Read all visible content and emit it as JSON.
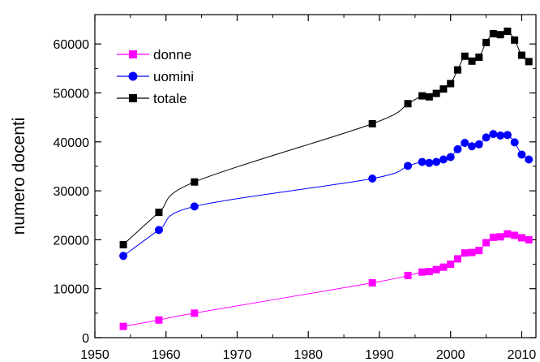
{
  "chart_data": {
    "type": "line",
    "title": "",
    "xlabel": "",
    "ylabel": "numero docenti",
    "xlim": [
      1950,
      2012
    ],
    "ylim": [
      0,
      66000
    ],
    "grid": false,
    "legend_position": "top-left",
    "x_ticks": [
      1950,
      1960,
      1970,
      1980,
      1990,
      2000,
      2010
    ],
    "y_ticks": [
      0,
      10000,
      20000,
      30000,
      40000,
      50000,
      60000
    ],
    "series": [
      {
        "name": "donne",
        "color": "#ff00ff",
        "marker": "square",
        "x": [
          1954,
          1959,
          1964,
          1989,
          1994,
          1996,
          1997,
          1998,
          1999,
          2000,
          2001,
          2002,
          2003,
          2004,
          2005,
          2006,
          2007,
          2008,
          2009,
          2010,
          2011
        ],
        "y": [
          2300,
          3600,
          5000,
          11200,
          12700,
          13400,
          13500,
          13900,
          14400,
          15000,
          16100,
          17300,
          17400,
          17800,
          19400,
          20500,
          20600,
          21200,
          20900,
          20400,
          20000
        ]
      },
      {
        "name": "uomini",
        "color": "#0000ff",
        "marker": "circle",
        "x": [
          1954,
          1959,
          1964,
          1989,
          1994,
          1996,
          1997,
          1998,
          1999,
          2000,
          2001,
          2002,
          2003,
          2004,
          2005,
          2006,
          2007,
          2008,
          2009,
          2010,
          2011
        ],
        "y": [
          16700,
          22000,
          26800,
          32500,
          35100,
          35900,
          35700,
          35900,
          36400,
          36900,
          38500,
          39800,
          39100,
          39500,
          40900,
          41600,
          41300,
          41400,
          39900,
          37400,
          36400
        ]
      },
      {
        "name": "totale",
        "color": "#000000",
        "marker": "square",
        "x": [
          1954,
          1959,
          1964,
          1989,
          1994,
          1996,
          1997,
          1998,
          1999,
          2000,
          2001,
          2002,
          2003,
          2004,
          2005,
          2006,
          2007,
          2008,
          2009,
          2010,
          2011
        ],
        "y": [
          19000,
          25600,
          31800,
          43700,
          47800,
          49400,
          49200,
          49900,
          50800,
          51900,
          54700,
          57500,
          56500,
          57300,
          60300,
          62100,
          61900,
          62600,
          60800,
          57700,
          56400
        ]
      }
    ]
  }
}
